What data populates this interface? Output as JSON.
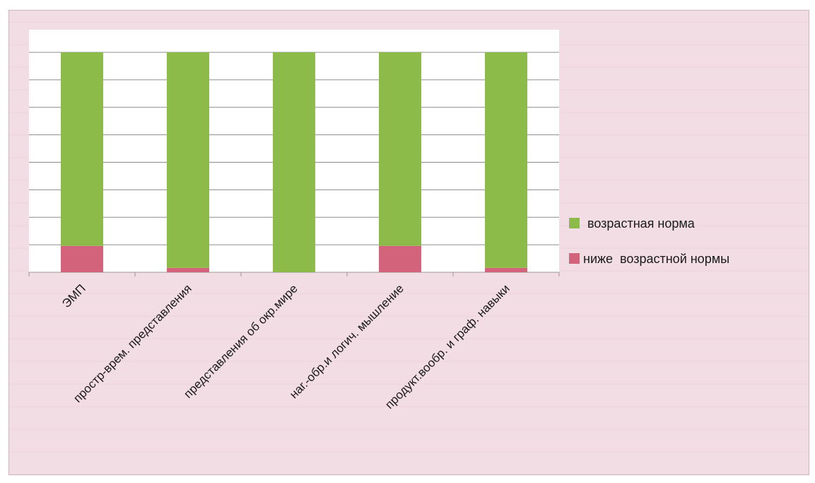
{
  "chart_data": {
    "type": "bar",
    "stacked": true,
    "categories": [
      "ЭМП",
      "простр-врем. представления",
      "представления об окр.мире",
      "наг.-обр.и логич. мышление",
      "продукт.вообр. и граф. навыки"
    ],
    "series": [
      {
        "name": "ниже  возрастной нормы",
        "values": [
          12,
          2,
          0,
          12,
          2
        ],
        "color": "#d2637b"
      },
      {
        "name": "возрастная норма",
        "values": [
          88,
          98,
          100,
          88,
          98
        ],
        "color": "#8dbb4a"
      }
    ],
    "ylim": [
      0,
      100
    ],
    "gridlines": 8,
    "grid": true,
    "legend_position": "right",
    "title": "",
    "xlabel": "",
    "ylabel": ""
  },
  "colors": {
    "background": "#f3dde4",
    "plot_area": "#ffffff",
    "gridline": "#8c8c8c",
    "axis": "#9a9a9a"
  }
}
